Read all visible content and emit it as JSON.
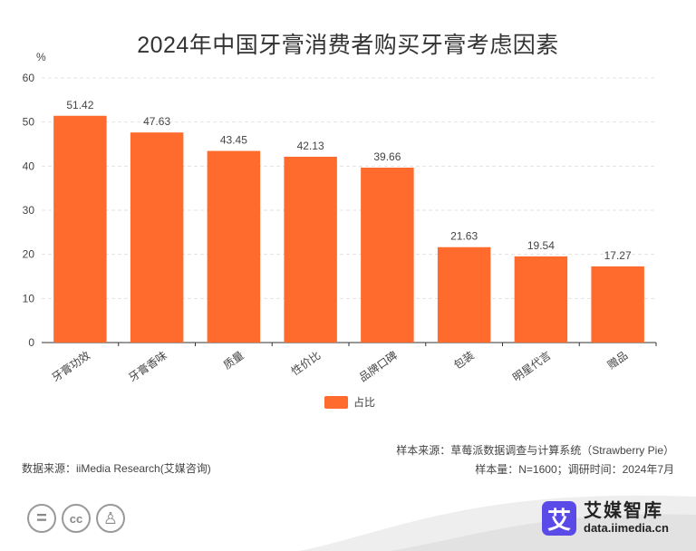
{
  "chart_data": {
    "type": "bar",
    "title": "2024年中国牙膏消费者购买牙膏考虑因素",
    "ylabel": "%",
    "xlabel": "",
    "ylim": [
      0,
      60
    ],
    "yticks": [
      0,
      10,
      20,
      30,
      40,
      50,
      60
    ],
    "categories": [
      "牙膏功效",
      "牙膏香味",
      "质量",
      "性价比",
      "品牌口碑",
      "包装",
      "明星代言",
      "赠品"
    ],
    "series": [
      {
        "name": "占比",
        "values": [
          51.42,
          47.63,
          43.45,
          42.13,
          39.66,
          21.63,
          19.54,
          17.27
        ],
        "color": "#FF6B2C"
      }
    ],
    "grid": true,
    "legend_position": "bottom-center"
  },
  "source": {
    "data_source": "数据来源：iiMedia Research(艾媒咨询)",
    "sample_source": "样本来源：草莓派数据调查与计算系统（Strawberry Pie）",
    "sample_info": "样本量：N=1600；调研时间：2024年7月"
  },
  "brand": {
    "logo_char": "艾",
    "name": "艾媒智库",
    "url": "data.iimedia.cn"
  },
  "license_icons": {
    "equal": "=",
    "cc": "cc",
    "person": "♙"
  }
}
